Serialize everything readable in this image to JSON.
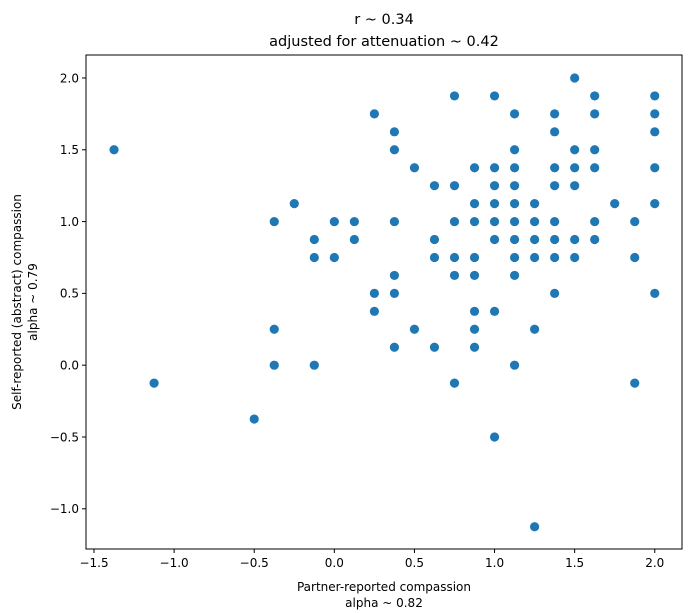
{
  "chart_data": {
    "type": "scatter",
    "title_lines": [
      "r ~ 0.34",
      "adjusted for attenuation ~ 0.42"
    ],
    "xlabel_lines": [
      "Partner-reported compassion",
      "alpha ~ 0.82"
    ],
    "ylabel_lines": [
      "Self-reported (abstract) compassion",
      "alpha ~ 0.79"
    ],
    "xlim": [
      -1.55,
      2.17
    ],
    "ylim": [
      -1.28,
      2.16
    ],
    "xticks": [
      -1.5,
      -1.0,
      -0.5,
      0.0,
      0.5,
      1.0,
      1.5,
      2.0
    ],
    "xtick_labels": [
      "−1.5",
      "−1.0",
      "−0.5",
      "0.0",
      "0.5",
      "1.0",
      "1.5",
      "2.0"
    ],
    "yticks": [
      -1.0,
      -0.5,
      0.0,
      0.5,
      1.0,
      1.5,
      2.0
    ],
    "ytick_labels": [
      "−1.0",
      "−0.5",
      "0.0",
      "0.5",
      "1.0",
      "1.5",
      "2.0"
    ],
    "grid": false,
    "marker_color": "#1f77b4",
    "points": [
      [
        -1.375,
        1.5
      ],
      [
        -1.125,
        -0.125
      ],
      [
        -0.5,
        -0.375
      ],
      [
        -0.375,
        1.0
      ],
      [
        -0.375,
        0.25
      ],
      [
        -0.375,
        0.0
      ],
      [
        -0.25,
        1.125
      ],
      [
        -0.125,
        0.875
      ],
      [
        -0.125,
        0.75
      ],
      [
        -0.125,
        0.0
      ],
      [
        0.0,
        1.0
      ],
      [
        0.0,
        0.75
      ],
      [
        0.125,
        1.0
      ],
      [
        0.125,
        0.875
      ],
      [
        0.25,
        1.75
      ],
      [
        0.25,
        0.5
      ],
      [
        0.25,
        0.375
      ],
      [
        0.375,
        1.625
      ],
      [
        0.375,
        1.5
      ],
      [
        0.375,
        1.0
      ],
      [
        0.375,
        0.625
      ],
      [
        0.375,
        0.5
      ],
      [
        0.375,
        0.125
      ],
      [
        0.5,
        1.375
      ],
      [
        0.5,
        0.25
      ],
      [
        0.625,
        1.25
      ],
      [
        0.625,
        0.875
      ],
      [
        0.625,
        0.75
      ],
      [
        0.625,
        0.125
      ],
      [
        0.75,
        1.875
      ],
      [
        0.75,
        1.25
      ],
      [
        0.75,
        1.0
      ],
      [
        0.75,
        0.75
      ],
      [
        0.75,
        0.625
      ],
      [
        0.75,
        -0.125
      ],
      [
        0.875,
        1.375
      ],
      [
        0.875,
        1.125
      ],
      [
        0.875,
        1.0
      ],
      [
        0.875,
        0.75
      ],
      [
        0.875,
        0.625
      ],
      [
        0.875,
        0.375
      ],
      [
        0.875,
        0.25
      ],
      [
        0.875,
        0.125
      ],
      [
        1.0,
        1.875
      ],
      [
        1.0,
        1.375
      ],
      [
        1.0,
        1.25
      ],
      [
        1.0,
        1.125
      ],
      [
        1.0,
        1.0
      ],
      [
        1.0,
        0.875
      ],
      [
        1.0,
        0.375
      ],
      [
        1.0,
        -0.5
      ],
      [
        1.125,
        1.75
      ],
      [
        1.125,
        1.5
      ],
      [
        1.125,
        1.375
      ],
      [
        1.125,
        1.25
      ],
      [
        1.125,
        1.125
      ],
      [
        1.125,
        1.0
      ],
      [
        1.125,
        0.875
      ],
      [
        1.125,
        0.75
      ],
      [
        1.125,
        0.625
      ],
      [
        1.125,
        0.0
      ],
      [
        1.25,
        1.125
      ],
      [
        1.25,
        1.0
      ],
      [
        1.25,
        0.875
      ],
      [
        1.25,
        0.75
      ],
      [
        1.25,
        0.25
      ],
      [
        1.25,
        -1.125
      ],
      [
        1.375,
        1.75
      ],
      [
        1.375,
        1.625
      ],
      [
        1.375,
        1.375
      ],
      [
        1.375,
        1.25
      ],
      [
        1.375,
        1.0
      ],
      [
        1.375,
        0.875
      ],
      [
        1.375,
        0.75
      ],
      [
        1.375,
        0.5
      ],
      [
        1.5,
        2.0
      ],
      [
        1.5,
        1.5
      ],
      [
        1.5,
        1.375
      ],
      [
        1.5,
        1.25
      ],
      [
        1.5,
        0.875
      ],
      [
        1.5,
        0.75
      ],
      [
        1.625,
        1.875
      ],
      [
        1.625,
        1.75
      ],
      [
        1.625,
        1.5
      ],
      [
        1.625,
        1.375
      ],
      [
        1.625,
        1.0
      ],
      [
        1.625,
        0.875
      ],
      [
        1.75,
        1.125
      ],
      [
        1.875,
        1.0
      ],
      [
        1.875,
        0.75
      ],
      [
        1.875,
        -0.125
      ],
      [
        2.0,
        1.875
      ],
      [
        2.0,
        1.75
      ],
      [
        2.0,
        1.625
      ],
      [
        2.0,
        1.375
      ],
      [
        2.0,
        1.125
      ],
      [
        2.0,
        0.5
      ]
    ]
  }
}
